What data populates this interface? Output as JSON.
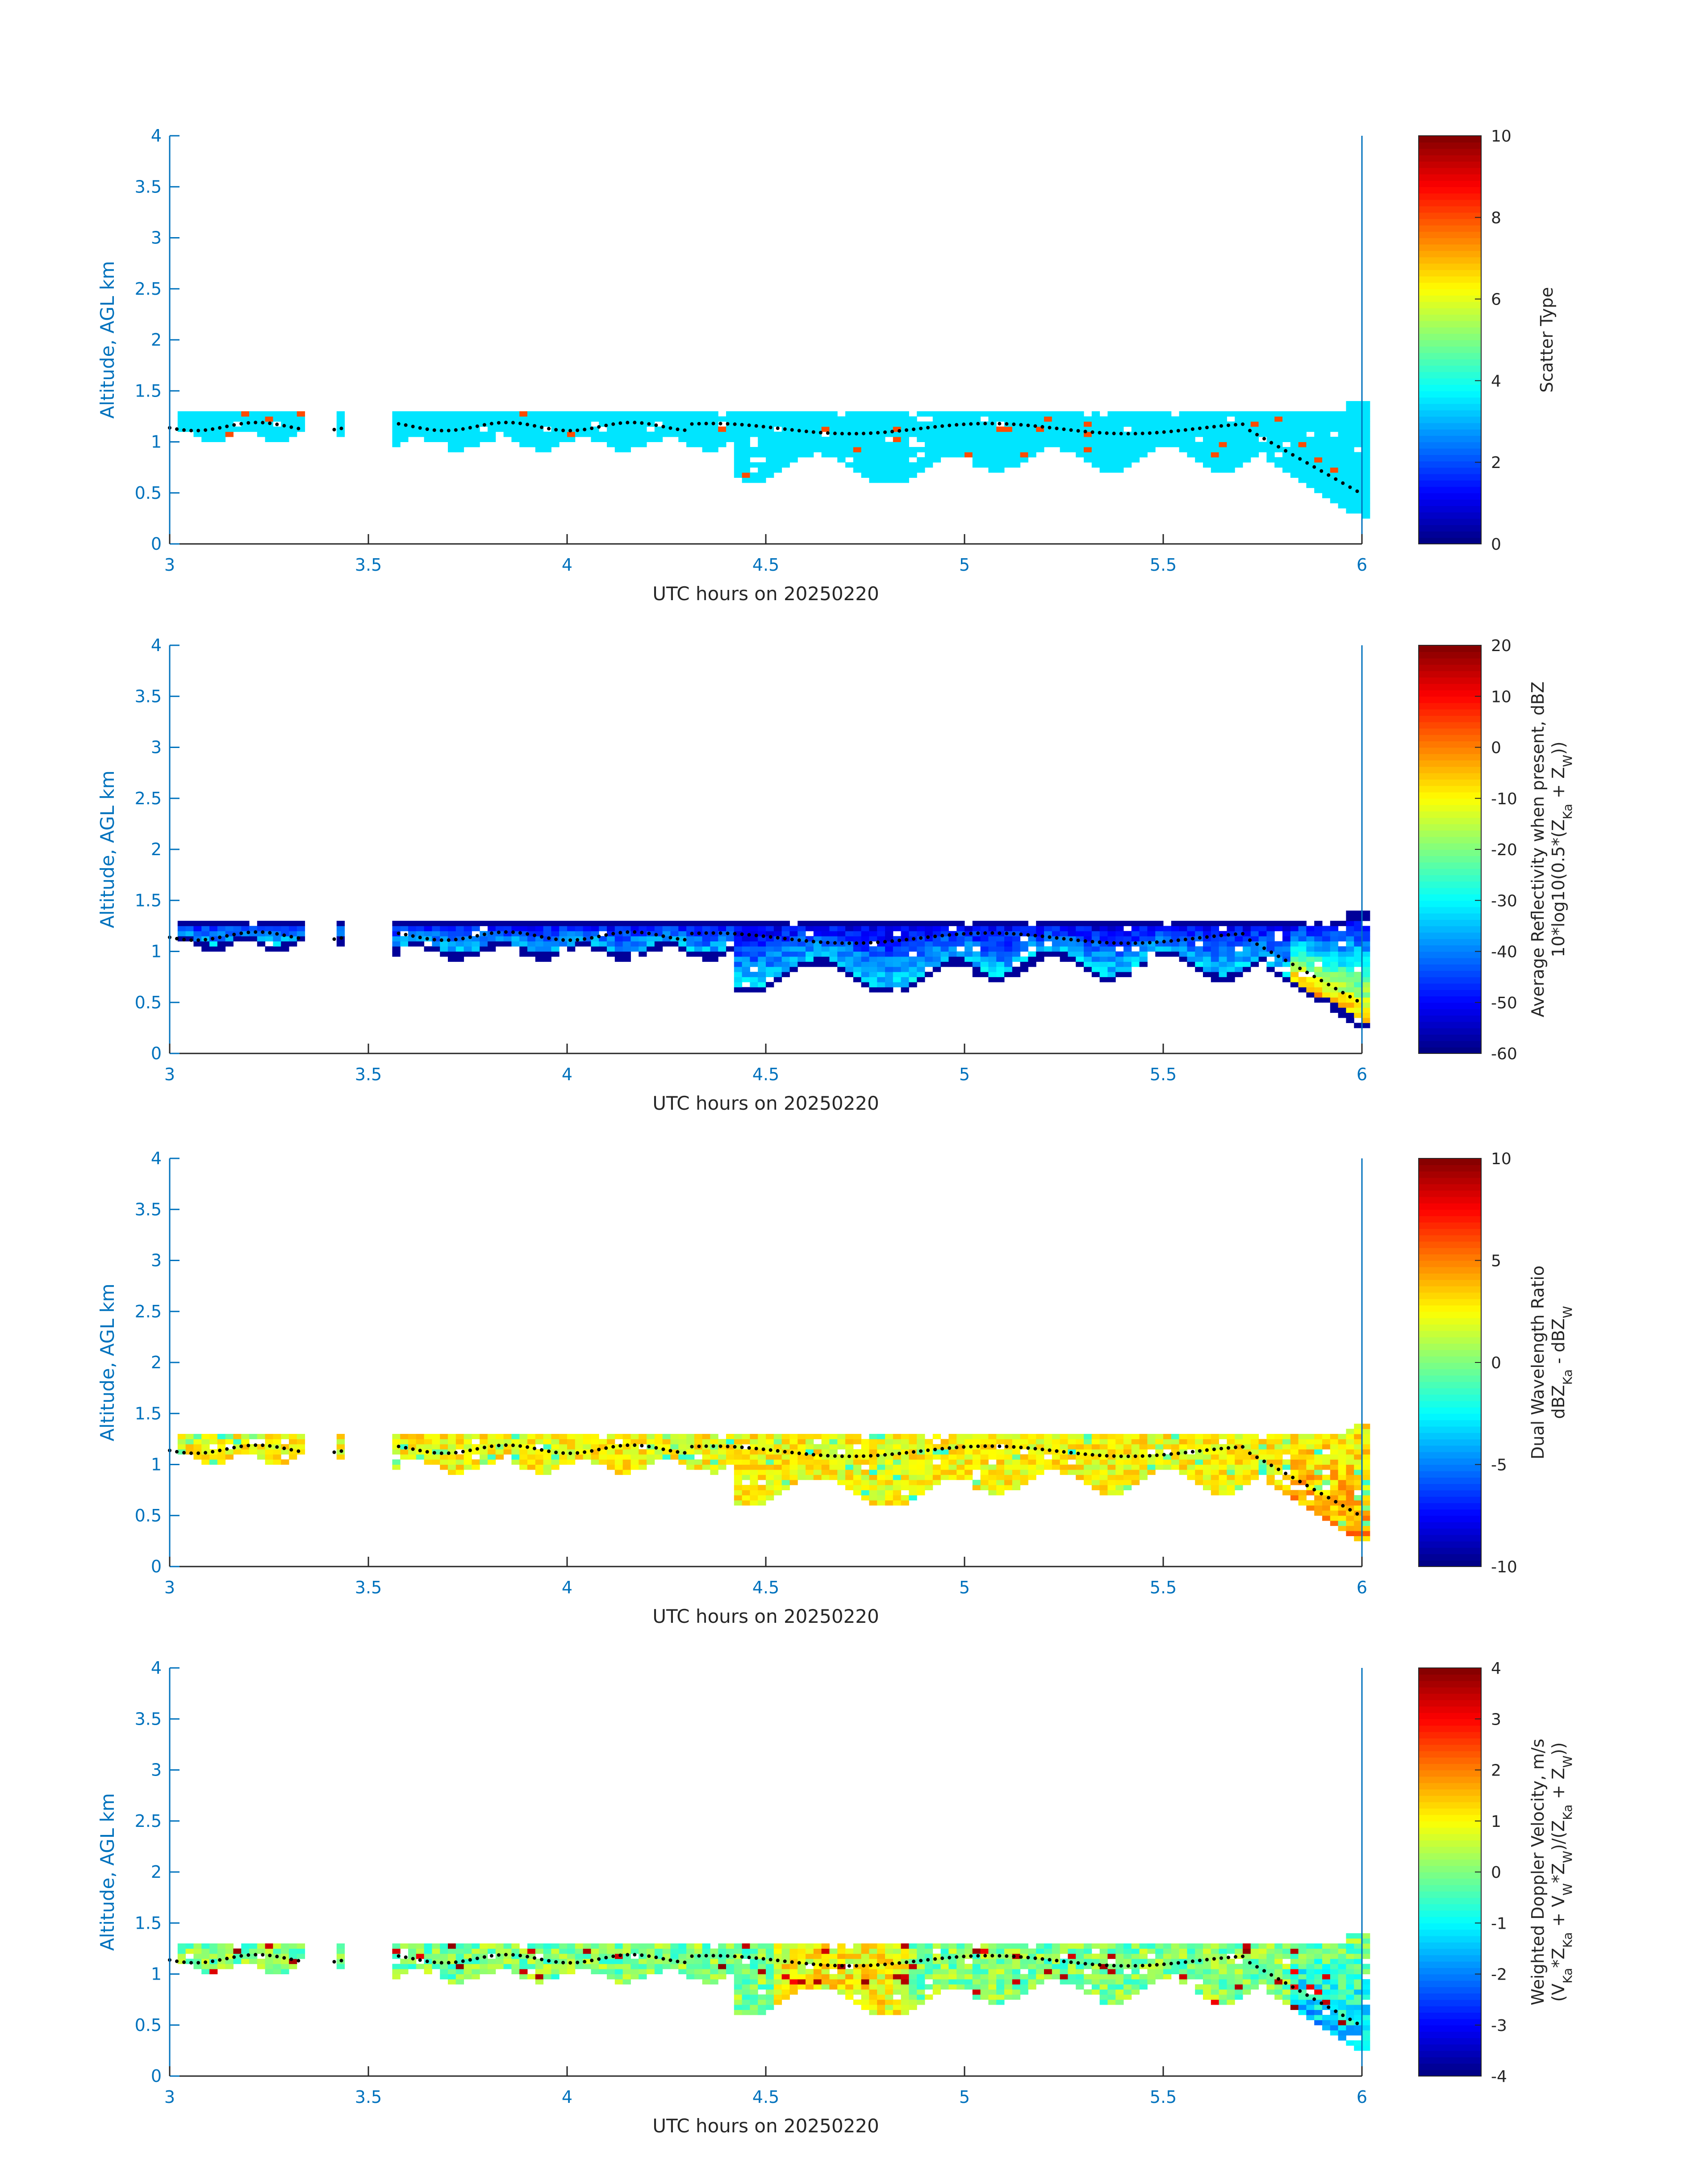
{
  "chart_data": [
    {
      "type": "heatmap",
      "xlabel": "UTC hours on 20250220",
      "ylabel": "Altitude, AGL km",
      "xlim": [
        3,
        6
      ],
      "ylim": [
        0,
        4
      ],
      "x_ticks": [
        "3",
        "3.5",
        "4",
        "4.5",
        "5",
        "5.5",
        "6"
      ],
      "y_ticks": [
        "0",
        "0.5",
        "1",
        "1.5",
        "2",
        "2.5",
        "3",
        "3.5",
        "4"
      ],
      "colorbar": {
        "label_lines": [
          "Scatter Type"
        ],
        "ticks": [
          "0",
          "2",
          "4",
          "6",
          "8",
          "10"
        ],
        "range": [
          0,
          10
        ],
        "colormap": "jet"
      },
      "field": "scatter",
      "dominant_value": 3.5,
      "echo_layer_base_km": [
        1.05,
        1.0,
        1.05,
        1.0,
        0.7,
        0.6,
        0.6,
        0.6,
        0.4,
        0.2
      ],
      "echo_layer_top_km": [
        1.3,
        1.3,
        1.3,
        1.3,
        1.3,
        1.3,
        1.3,
        1.3,
        1.3,
        1.35
      ],
      "cloud_top_dots_km": [
        1.15,
        1.1,
        1.2,
        1.15,
        1.12,
        1.15,
        1.12,
        1.15,
        1.15,
        1.1,
        0.5
      ]
    },
    {
      "type": "heatmap",
      "xlabel": "UTC hours on 20250220",
      "ylabel": "Altitude, AGL km",
      "xlim": [
        3,
        6
      ],
      "ylim": [
        0,
        4
      ],
      "x_ticks": [
        "3",
        "3.5",
        "4",
        "4.5",
        "5",
        "5.5",
        "6"
      ],
      "y_ticks": [
        "0",
        "0.5",
        "1",
        "1.5",
        "2",
        "2.5",
        "3",
        "3.5",
        "4"
      ],
      "colorbar": {
        "label_lines": [
          "Average Reflectivity when present, dBZ",
          "10*log10(0.5*(Z",
          "Ka",
          " + Z",
          "W",
          "))"
        ],
        "ticks": [
          "-60",
          "-50",
          "-40",
          "-30",
          "-20",
          "-10",
          "0",
          "10",
          "20"
        ],
        "range": [
          -60,
          20
        ],
        "colormap": "jet"
      },
      "field": "reflectivity"
    },
    {
      "type": "heatmap",
      "xlabel": "UTC hours on 20250220",
      "ylabel": "Altitude, AGL km",
      "xlim": [
        3,
        6
      ],
      "ylim": [
        0,
        4
      ],
      "x_ticks": [
        "3",
        "3.5",
        "4",
        "4.5",
        "5",
        "5.5",
        "6"
      ],
      "y_ticks": [
        "0",
        "0.5",
        "1",
        "1.5",
        "2",
        "2.5",
        "3",
        "3.5",
        "4"
      ],
      "colorbar": {
        "label_lines": [
          "Dual Wavelength Ratio",
          "dBZ",
          "Ka",
          " - dBZ",
          "W"
        ],
        "ticks": [
          "-10",
          "-5",
          "0",
          "5",
          "10"
        ],
        "range": [
          -10,
          10
        ],
        "colormap": "jet"
      },
      "field": "dwr"
    },
    {
      "type": "heatmap",
      "xlabel": "UTC hours on 20250220",
      "ylabel": "Altitude, AGL km",
      "xlim": [
        3,
        6
      ],
      "ylim": [
        0,
        4
      ],
      "x_ticks": [
        "3",
        "3.5",
        "4",
        "4.5",
        "5",
        "5.5",
        "6"
      ],
      "y_ticks": [
        "0",
        "0.5",
        "1",
        "1.5",
        "2",
        "2.5",
        "3",
        "3.5",
        "4"
      ],
      "colorbar": {
        "label_lines": [
          "Weighted Doppler Velocity, m/s",
          "(V",
          "Ka",
          "*Z",
          "Ka",
          " + V",
          "W",
          "*Z",
          "W",
          ")/(Z",
          "Ka",
          " + Z",
          "W",
          "))"
        ],
        "ticks": [
          "-4",
          "-3",
          "-2",
          "-1",
          "0",
          "1",
          "2",
          "3",
          "4"
        ],
        "range": [
          -4,
          4
        ],
        "colormap": "jet"
      },
      "field": "velocity"
    }
  ]
}
